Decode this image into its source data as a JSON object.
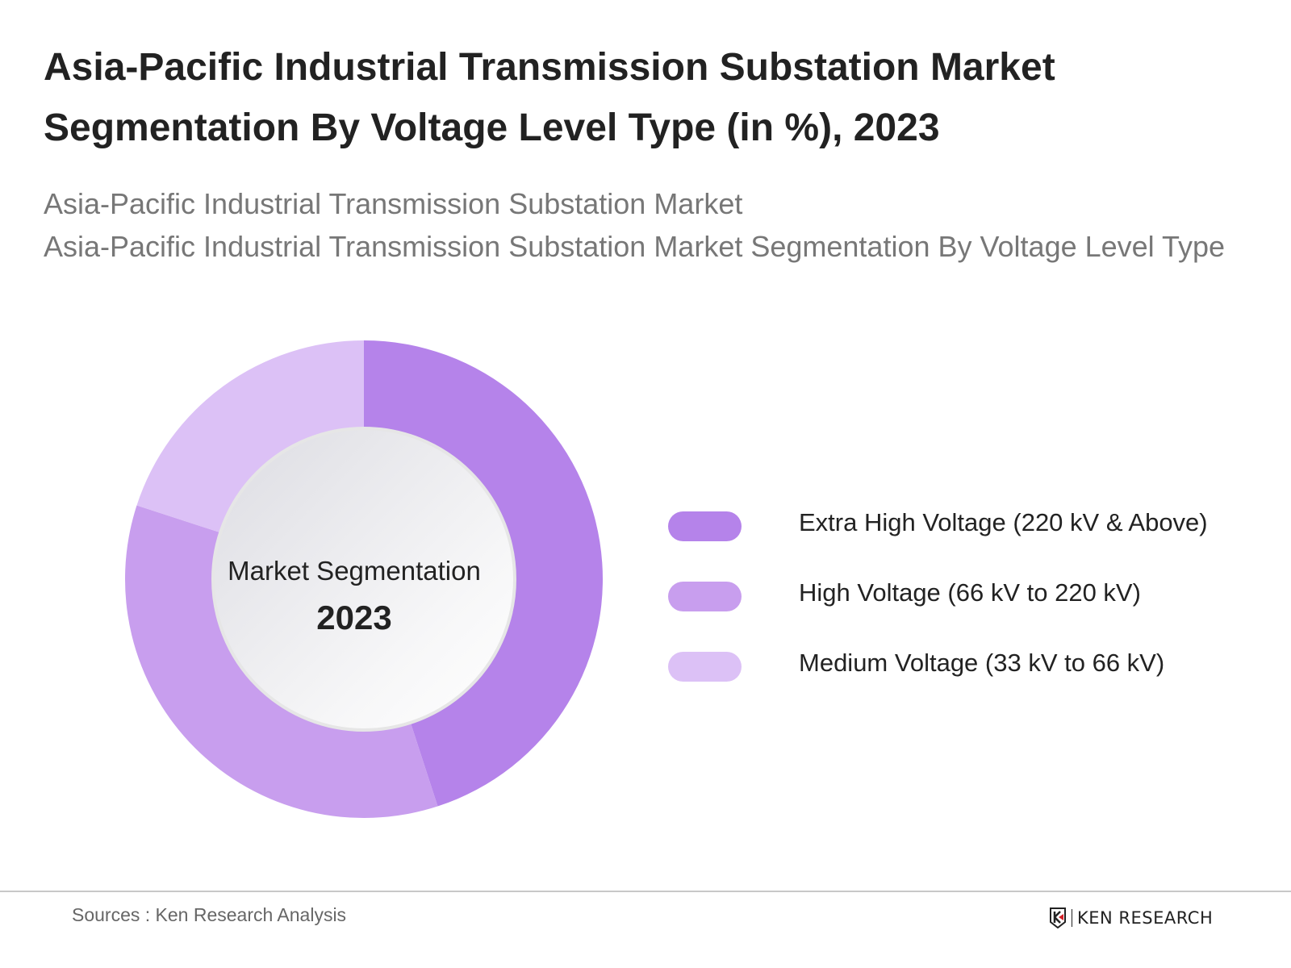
{
  "header": {
    "title": "Asia-Pacific Industrial Transmission Substation Market Segmentation By Voltage Level Type (in %), 2023",
    "subtitle_line1": "Asia-Pacific Industrial Transmission Substation Market",
    "subtitle_line2": "Asia-Pacific Industrial Transmission Substation Market Segmentation By Voltage Level Type"
  },
  "chart_data": {
    "type": "pie",
    "variant": "donut",
    "center_label": "Market Segmentation",
    "center_year": "2023",
    "legend_position": "right",
    "series": [
      {
        "name": "Extra High Voltage (220 kV & Above)",
        "value": 45,
        "color": "#b583ea"
      },
      {
        "name": "High Voltage (66 kV to 220 kV)",
        "value": 35,
        "color": "#c89eee"
      },
      {
        "name": "Medium Voltage (33 kV to 66 kV)",
        "value": 20,
        "color": "#dcc1f6"
      }
    ]
  },
  "footer": {
    "source": "Sources : Ken Research Analysis",
    "logo_text": "KEN RESEARCH"
  }
}
